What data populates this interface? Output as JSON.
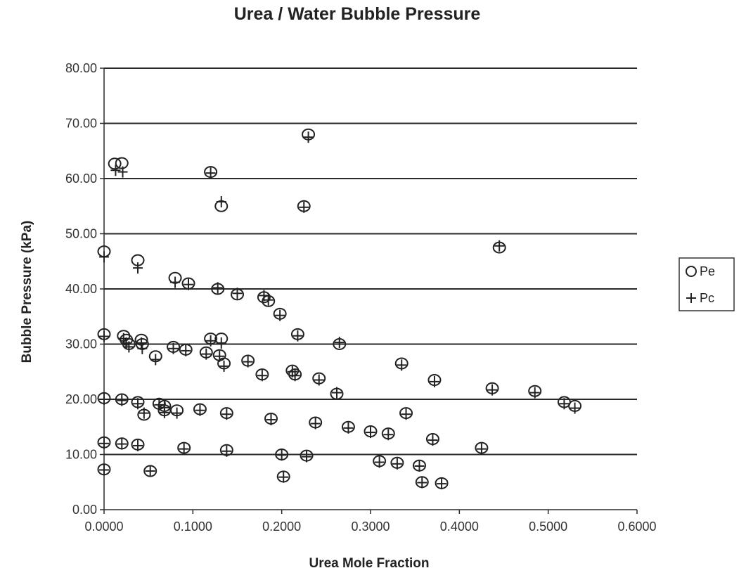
{
  "chart_data": {
    "type": "scatter",
    "title": "Urea / Water Bubble Pressure",
    "xlabel": "Urea Mole Fraction",
    "ylabel": "Bubble Pressure (kPa)",
    "xlim": [
      0,
      0.6
    ],
    "ylim": [
      0,
      80
    ],
    "x_ticks": [
      "0.0000",
      "0.1000",
      "0.2000",
      "0.3000",
      "0.4000",
      "0.5000",
      "0.6000"
    ],
    "y_ticks": [
      "0.00",
      "10.00",
      "20.00",
      "30.00",
      "40.00",
      "50.00",
      "60.00",
      "70.00",
      "80.00"
    ],
    "grid": "horizontal",
    "legend_position": "right",
    "series": [
      {
        "name": "Pe",
        "marker": "circle",
        "points": [
          [
            0.0,
            46.8
          ],
          [
            0.0,
            31.8
          ],
          [
            0.0,
            20.2
          ],
          [
            0.0,
            12.2
          ],
          [
            0.0,
            7.3
          ],
          [
            0.012,
            62.7
          ],
          [
            0.02,
            62.8
          ],
          [
            0.02,
            20.0
          ],
          [
            0.02,
            12.0
          ],
          [
            0.022,
            31.5
          ],
          [
            0.025,
            30.8
          ],
          [
            0.028,
            30.0
          ],
          [
            0.038,
            45.2
          ],
          [
            0.038,
            19.5
          ],
          [
            0.038,
            11.8
          ],
          [
            0.042,
            30.8
          ],
          [
            0.043,
            30.0
          ],
          [
            0.045,
            17.2
          ],
          [
            0.052,
            7.0
          ],
          [
            0.058,
            27.8
          ],
          [
            0.062,
            19.2
          ],
          [
            0.068,
            18.8
          ],
          [
            0.068,
            18.0
          ],
          [
            0.078,
            29.5
          ],
          [
            0.08,
            42.0
          ],
          [
            0.082,
            18.0
          ],
          [
            0.09,
            11.2
          ],
          [
            0.092,
            29.0
          ],
          [
            0.095,
            41.0
          ],
          [
            0.108,
            18.2
          ],
          [
            0.115,
            28.5
          ],
          [
            0.12,
            31.0
          ],
          [
            0.12,
            61.2
          ],
          [
            0.128,
            40.0
          ],
          [
            0.13,
            28.0
          ],
          [
            0.132,
            31.0
          ],
          [
            0.132,
            55.0
          ],
          [
            0.135,
            26.5
          ],
          [
            0.138,
            17.5
          ],
          [
            0.138,
            10.8
          ],
          [
            0.15,
            39.0
          ],
          [
            0.162,
            27.0
          ],
          [
            0.178,
            24.5
          ],
          [
            0.18,
            38.5
          ],
          [
            0.185,
            37.8
          ],
          [
            0.188,
            16.5
          ],
          [
            0.198,
            35.5
          ],
          [
            0.2,
            10.0
          ],
          [
            0.202,
            6.0
          ],
          [
            0.212,
            25.2
          ],
          [
            0.215,
            24.5
          ],
          [
            0.218,
            31.8
          ],
          [
            0.225,
            55.0
          ],
          [
            0.228,
            9.8
          ],
          [
            0.23,
            68.0
          ],
          [
            0.238,
            15.8
          ],
          [
            0.242,
            23.8
          ],
          [
            0.262,
            21.0
          ],
          [
            0.265,
            30.0
          ],
          [
            0.275,
            15.0
          ],
          [
            0.3,
            14.2
          ],
          [
            0.31,
            8.8
          ],
          [
            0.32,
            13.8
          ],
          [
            0.33,
            8.5
          ],
          [
            0.335,
            26.5
          ],
          [
            0.34,
            17.5
          ],
          [
            0.355,
            8.0
          ],
          [
            0.358,
            5.0
          ],
          [
            0.37,
            12.8
          ],
          [
            0.372,
            23.5
          ],
          [
            0.38,
            4.8
          ],
          [
            0.425,
            11.2
          ],
          [
            0.437,
            22.0
          ],
          [
            0.445,
            47.5
          ],
          [
            0.485,
            21.5
          ],
          [
            0.518,
            19.5
          ],
          [
            0.53,
            18.8
          ]
        ]
      },
      {
        "name": "Pc",
        "marker": "plus",
        "points": [
          [
            0.0,
            45.8
          ],
          [
            0.0,
            31.4
          ],
          [
            0.0,
            20.0
          ],
          [
            0.0,
            12.0
          ],
          [
            0.0,
            7.2
          ],
          [
            0.013,
            61.5
          ],
          [
            0.021,
            61.2
          ],
          [
            0.02,
            19.8
          ],
          [
            0.02,
            11.9
          ],
          [
            0.022,
            31.0
          ],
          [
            0.025,
            30.2
          ],
          [
            0.028,
            29.5
          ],
          [
            0.038,
            43.8
          ],
          [
            0.038,
            19.2
          ],
          [
            0.038,
            11.6
          ],
          [
            0.042,
            30.2
          ],
          [
            0.043,
            29.2
          ],
          [
            0.045,
            17.5
          ],
          [
            0.052,
            7.0
          ],
          [
            0.058,
            27.2
          ],
          [
            0.062,
            19.0
          ],
          [
            0.068,
            18.5
          ],
          [
            0.068,
            17.6
          ],
          [
            0.078,
            29.2
          ],
          [
            0.08,
            41.2
          ],
          [
            0.082,
            17.5
          ],
          [
            0.09,
            11.0
          ],
          [
            0.092,
            28.8
          ],
          [
            0.095,
            40.8
          ],
          [
            0.108,
            18.0
          ],
          [
            0.115,
            28.2
          ],
          [
            0.12,
            30.6
          ],
          [
            0.12,
            61.0
          ],
          [
            0.128,
            40.2
          ],
          [
            0.13,
            27.8
          ],
          [
            0.132,
            30.2
          ],
          [
            0.132,
            55.8
          ],
          [
            0.135,
            26.0
          ],
          [
            0.138,
            17.3
          ],
          [
            0.138,
            10.6
          ],
          [
            0.15,
            39.2
          ],
          [
            0.162,
            26.8
          ],
          [
            0.178,
            24.3
          ],
          [
            0.18,
            38.8
          ],
          [
            0.185,
            38.0
          ],
          [
            0.188,
            16.3
          ],
          [
            0.198,
            35.2
          ],
          [
            0.2,
            9.9
          ],
          [
            0.202,
            5.9
          ],
          [
            0.212,
            25.0
          ],
          [
            0.215,
            24.3
          ],
          [
            0.218,
            31.5
          ],
          [
            0.225,
            54.8
          ],
          [
            0.228,
            9.6
          ],
          [
            0.23,
            67.5
          ],
          [
            0.238,
            15.6
          ],
          [
            0.242,
            23.5
          ],
          [
            0.262,
            21.2
          ],
          [
            0.265,
            30.3
          ],
          [
            0.275,
            14.8
          ],
          [
            0.3,
            14.0
          ],
          [
            0.31,
            8.6
          ],
          [
            0.32,
            13.6
          ],
          [
            0.33,
            8.3
          ],
          [
            0.335,
            26.2
          ],
          [
            0.34,
            17.3
          ],
          [
            0.355,
            7.9
          ],
          [
            0.358,
            4.9
          ],
          [
            0.37,
            12.6
          ],
          [
            0.372,
            23.2
          ],
          [
            0.38,
            4.7
          ],
          [
            0.425,
            11.0
          ],
          [
            0.437,
            21.7
          ],
          [
            0.445,
            47.8
          ],
          [
            0.485,
            21.2
          ],
          [
            0.518,
            19.2
          ],
          [
            0.53,
            18.4
          ]
        ]
      }
    ]
  },
  "legend": [
    {
      "label": "Pe",
      "marker": "circle"
    },
    {
      "label": "Pc",
      "marker": "plus"
    }
  ]
}
